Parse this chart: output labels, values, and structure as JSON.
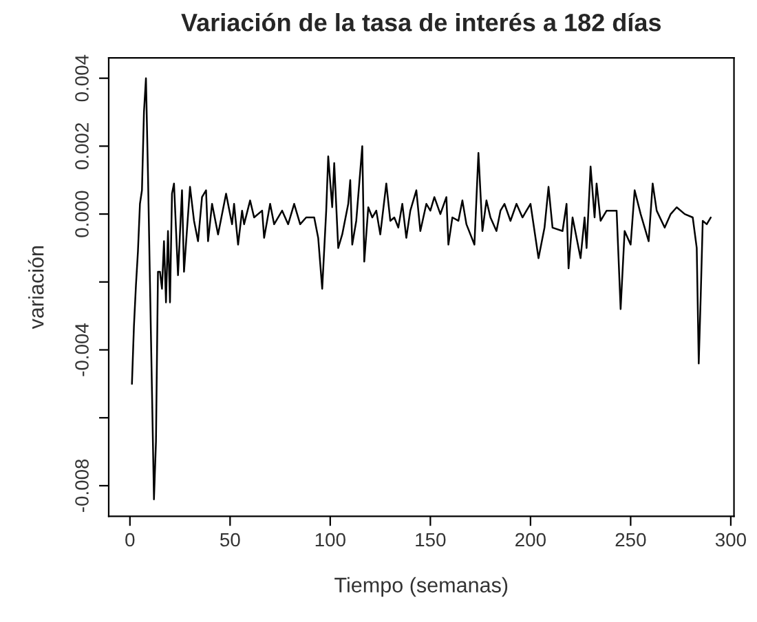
{
  "chart_data": {
    "type": "line",
    "title": "Variación de la tasa de interés a 182 días",
    "xlabel": "Tiempo (semanas)",
    "ylabel": "variación",
    "x": [
      1,
      2,
      3,
      4,
      5,
      6,
      7,
      8,
      9,
      10,
      11,
      12,
      13,
      14,
      15,
      16,
      17,
      18,
      19,
      20,
      21,
      22,
      24,
      26,
      27,
      30,
      32,
      34,
      36,
      38,
      39,
      41,
      44,
      48,
      51,
      52,
      54,
      56,
      57,
      60,
      62,
      66,
      67,
      70,
      72,
      76,
      79,
      82,
      85,
      88,
      92,
      94,
      96,
      98,
      99,
      101,
      102,
      104,
      106,
      109,
      110,
      111,
      113,
      116,
      117,
      119,
      121,
      123,
      125,
      128,
      130,
      132,
      134,
      136,
      138,
      140,
      143,
      145,
      148,
      150,
      152,
      155,
      158,
      159,
      161,
      164,
      166,
      168,
      172,
      174,
      176,
      178,
      180,
      183,
      185,
      187,
      190,
      193,
      196,
      200,
      204,
      207,
      209,
      211,
      216,
      218,
      219,
      221,
      225,
      227,
      228,
      230,
      232,
      233,
      235,
      238,
      243,
      245,
      247,
      250,
      252,
      255,
      259,
      261,
      263,
      267,
      270,
      273,
      277,
      281,
      283,
      284,
      285,
      286,
      288,
      290
    ],
    "series": [
      {
        "color": "#000000",
        "values": [
          -0.005,
          -0.0033,
          -0.0021,
          -0.0011,
          0.0003,
          0.0007,
          0.003,
          0.004,
          0.0012,
          -0.002,
          -0.0052,
          -0.0084,
          -0.0067,
          -0.0017,
          -0.0017,
          -0.0022,
          -0.0008,
          -0.0026,
          -0.0005,
          -0.0026,
          0.0006,
          0.0009,
          -0.0018,
          0.0007,
          -0.0017,
          0.0008,
          -0.0002,
          -0.0008,
          0.0005,
          0.0007,
          -0.0008,
          0.0003,
          -0.0006,
          0.0006,
          -0.0003,
          0.0003,
          -0.0009,
          0.0001,
          -0.0003,
          0.0004,
          -0.0001,
          0.0001,
          -0.0007,
          0.0003,
          -0.0003,
          0.0001,
          -0.0003,
          0.0003,
          -0.0003,
          -0.0001,
          -0.0001,
          -0.0007,
          -0.0022,
          0.0001,
          0.0017,
          0.0002,
          0.0015,
          -0.001,
          -0.0006,
          0.0003,
          0.001,
          -0.0009,
          -0.0002,
          0.002,
          -0.0014,
          0.0002,
          -0.0001,
          0.0001,
          -0.0006,
          0.0009,
          -0.0002,
          -0.0001,
          -0.0004,
          0.0003,
          -0.0007,
          0.0001,
          0.0007,
          -0.0005,
          0.0003,
          0.0001,
          0.0005,
          0.0,
          0.0005,
          -0.0009,
          -0.0001,
          -0.0002,
          0.0004,
          -0.0003,
          -0.0009,
          0.0018,
          -0.0005,
          0.0004,
          -0.0001,
          -0.0005,
          0.0001,
          0.0003,
          -0.0002,
          0.0003,
          -0.0001,
          0.0003,
          -0.0013,
          -0.0004,
          0.0008,
          -0.0004,
          -0.0005,
          0.0003,
          -0.0016,
          -0.0001,
          -0.0013,
          -0.0001,
          -0.001,
          0.0014,
          -0.0001,
          0.0009,
          -0.0002,
          0.0001,
          0.0001,
          -0.0028,
          -0.0005,
          -0.0009,
          0.0007,
          0.0,
          -0.0008,
          0.0009,
          0.0001,
          -0.0004,
          0.0,
          0.0002,
          0.0,
          -0.0001,
          -0.001,
          -0.0044,
          -0.0024,
          -0.0002,
          -0.0003,
          -0.0001
        ]
      }
    ],
    "xlim": [
      -10.6,
      301.6
    ],
    "xticks": [
      0,
      50,
      100,
      150,
      200,
      250,
      300
    ],
    "ylim": [
      -0.0089,
      0.0046
    ],
    "yticks": [
      {
        "value": -0.008,
        "label": "-0.008"
      },
      {
        "value": -0.006,
        "label": null
      },
      {
        "value": -0.004,
        "label": "-0.004"
      },
      {
        "value": -0.002,
        "label": null
      },
      {
        "value": 0,
        "label": "0.000"
      },
      {
        "value": 0.002,
        "label": "0.002"
      },
      {
        "value": 0.004,
        "label": "0.004"
      }
    ],
    "grid": false,
    "line_style": "solid",
    "marker": "none"
  }
}
